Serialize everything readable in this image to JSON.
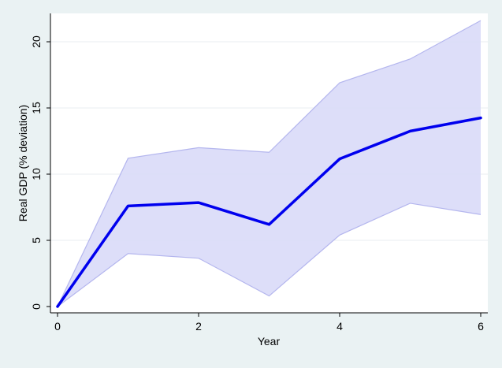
{
  "chart_data": {
    "type": "line",
    "title": "",
    "xlabel": "Year",
    "ylabel": "Real GDP (% deviation)",
    "x": [
      0,
      1,
      2,
      3,
      4,
      5,
      6
    ],
    "series": [
      {
        "values": [
          0,
          7.6,
          7.85,
          6.2,
          11.15,
          13.25,
          14.25
        ],
        "color": "#0000ee"
      }
    ],
    "band": {
      "lower": [
        0,
        4.0,
        3.65,
        0.8,
        5.4,
        7.8,
        6.95
      ],
      "upper": [
        0,
        11.2,
        12.0,
        11.65,
        16.9,
        18.7,
        21.6
      ],
      "color": "#d9daf8",
      "edge_color": "#b4b6ee"
    },
    "xlim": [
      0,
      6
    ],
    "ylim": [
      0,
      20
    ],
    "xticks": [
      0,
      2,
      4,
      6
    ],
    "yticks": [
      0,
      5,
      10,
      15,
      20
    ],
    "grid": "horizontal",
    "legend": "none"
  }
}
